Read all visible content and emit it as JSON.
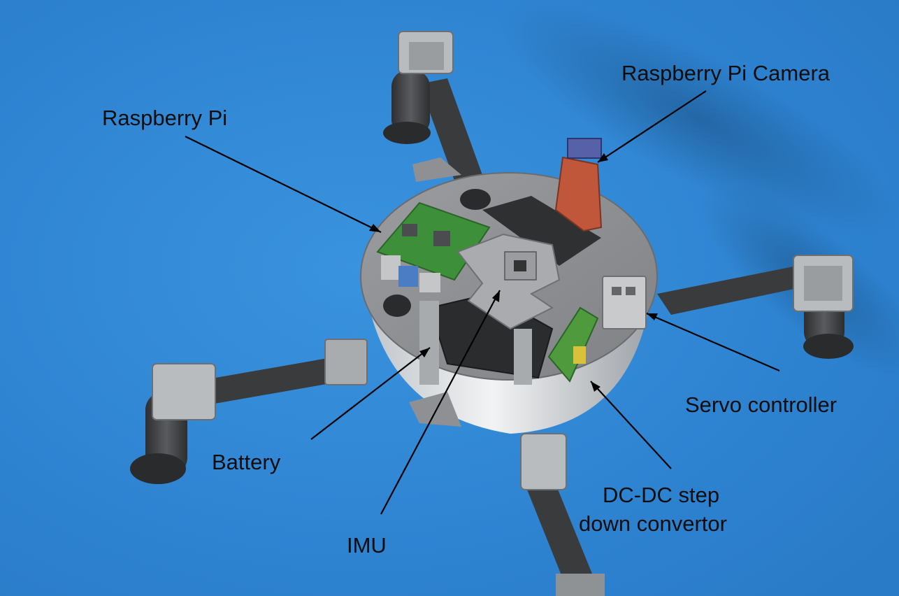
{
  "labels": {
    "raspberry_pi": "Raspberry Pi",
    "raspberry_pi_camera": "Raspberry Pi Camera",
    "servo_controller": "Servo controller",
    "battery": "Battery",
    "dc_dc_line1": "DC-DC step",
    "dc_dc_line2": "down convertor",
    "imu": "IMU"
  },
  "colors": {
    "background": "#2f86d4",
    "body_plate": "#8d8f92",
    "hull": "#d6d9dc",
    "leg": "#3c3d3f",
    "pcb_green": "#3e8f3a",
    "battery_black": "#2b2c2e",
    "camera_mount": "#c0563a"
  }
}
